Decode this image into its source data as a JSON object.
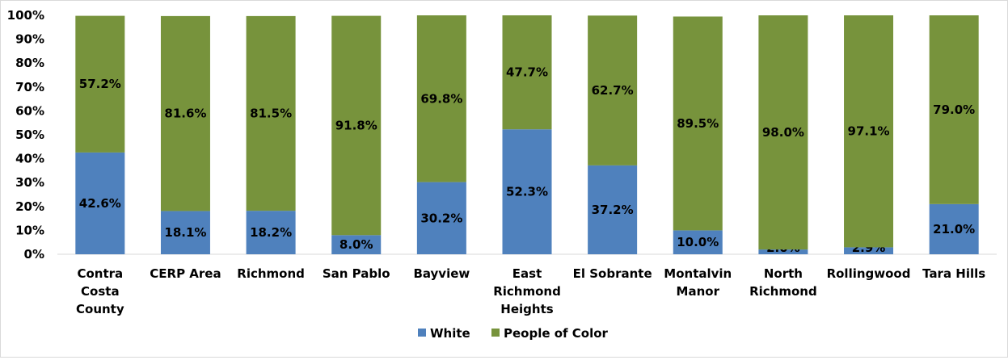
{
  "chart_data": {
    "type": "bar",
    "stacked": true,
    "percent_stacked": true,
    "title": "",
    "xlabel": "",
    "ylabel": "",
    "ylim": [
      0,
      100
    ],
    "yticks": [
      "0%",
      "10%",
      "20%",
      "30%",
      "40%",
      "50%",
      "60%",
      "70%",
      "80%",
      "90%",
      "100%"
    ],
    "grid": false,
    "legend_position": "bottom",
    "categories": [
      [
        "Contra",
        "Costa",
        "County"
      ],
      [
        "CERP Area"
      ],
      [
        "Richmond"
      ],
      [
        "San Pablo"
      ],
      [
        "Bayview"
      ],
      [
        "East",
        "Richmond",
        "Heights"
      ],
      [
        "El Sobrante"
      ],
      [
        "Montalvin",
        "Manor"
      ],
      [
        "North",
        "Richmond"
      ],
      [
        "Rollingwood"
      ],
      [
        "Tara Hills"
      ]
    ],
    "series": [
      {
        "name": "White",
        "color": "#4f81bd",
        "values": [
          42.6,
          18.1,
          18.2,
          8.0,
          30.2,
          52.3,
          37.2,
          10.0,
          2.0,
          2.9,
          21.0
        ],
        "labels": [
          "42.6%",
          "18.1%",
          "18.2%",
          "8.0%",
          "30.2%",
          "52.3%",
          "37.2%",
          "10.0%",
          "2.0%",
          "2.9%",
          "21.0%"
        ]
      },
      {
        "name": "People of Color",
        "color": "#77933c",
        "values": [
          57.2,
          81.6,
          81.5,
          91.8,
          69.8,
          47.7,
          62.7,
          89.5,
          98.0,
          97.1,
          79.0
        ],
        "labels": [
          "57.2%",
          "81.6%",
          "81.5%",
          "91.8%",
          "69.8%",
          "47.7%",
          "62.7%",
          "89.5%",
          "98.0%",
          "97.1%",
          "79.0%"
        ]
      }
    ]
  }
}
